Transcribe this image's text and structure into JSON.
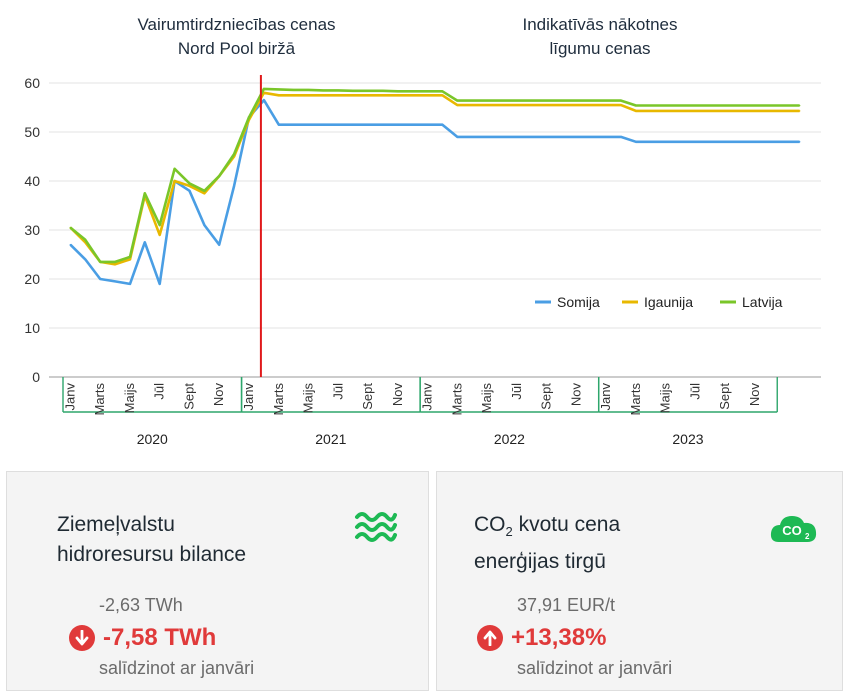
{
  "headers": {
    "left_line1": "Vairumtirdzniecības cenas",
    "left_line2": "Nord Pool biržā",
    "right_line1": "Indikatīvās nākotnes",
    "right_line2": "līgumu cenas"
  },
  "chart_data": {
    "type": "line",
    "title": "",
    "xlabel": "",
    "ylabel": "",
    "ylim": [
      0,
      60
    ],
    "yticks": [
      0,
      10,
      20,
      30,
      40,
      50,
      60
    ],
    "grid": true,
    "legend_position": "right",
    "month_labels": [
      "Janv",
      "Marts",
      "Maijs",
      "Jūl",
      "Sept",
      "Nov"
    ],
    "years": [
      "2020",
      "2021",
      "2022",
      "2023"
    ],
    "divider_after": "2021-Janv",
    "series": [
      {
        "name": "Somija",
        "color": "#4a9ee4",
        "values": [
          27,
          24,
          20,
          19.5,
          19,
          27.5,
          19,
          40,
          38,
          31,
          27,
          39,
          53,
          56.5,
          51.5,
          51.5,
          51.5,
          51.5,
          51.5,
          51.5,
          51.5,
          51.5,
          51.5,
          51.5,
          51.5,
          51.5,
          49,
          49,
          49,
          49,
          49,
          49,
          49,
          49,
          49,
          49,
          49,
          49,
          48,
          48,
          48,
          48,
          48,
          48,
          48,
          48,
          48,
          48,
          48,
          48
        ]
      },
      {
        "name": "Igaunija",
        "color": "#e8b800",
        "values": [
          30.5,
          27.5,
          23.5,
          23,
          24,
          37,
          29,
          40,
          39,
          37.5,
          41,
          45,
          52.5,
          58,
          57.5,
          57.5,
          57.5,
          57.5,
          57.5,
          57.5,
          57.5,
          57.5,
          57.5,
          57.5,
          57.5,
          57.5,
          55.5,
          55.5,
          55.5,
          55.5,
          55.5,
          55.5,
          55.5,
          55.5,
          55.5,
          55.5,
          55.5,
          55.5,
          54.3,
          54.3,
          54.3,
          54.3,
          54.3,
          54.3,
          54.3,
          54.3,
          54.3,
          54.3,
          54.3,
          54.3
        ]
      },
      {
        "name": "Latvija",
        "color": "#7ac629",
        "values": [
          30.5,
          28,
          23.5,
          23.5,
          24.5,
          37.5,
          31,
          42.5,
          39.5,
          38,
          41,
          45.5,
          53,
          58.8,
          58.7,
          58.6,
          58.6,
          58.5,
          58.5,
          58.4,
          58.4,
          58.4,
          58.3,
          58.3,
          58.3,
          58.3,
          56.4,
          56.4,
          56.4,
          56.4,
          56.4,
          56.4,
          56.4,
          56.4,
          56.4,
          56.4,
          56.4,
          56.4,
          55.4,
          55.4,
          55.4,
          55.4,
          55.4,
          55.4,
          55.4,
          55.4,
          55.4,
          55.4,
          55.4,
          55.4
        ]
      }
    ]
  },
  "cards": {
    "hydro": {
      "title_line1": "Ziemeļvalstu",
      "title_line2": "hidroresursu bilance",
      "previous": "-2,63 TWh",
      "change": "-7,58 TWh",
      "direction": "down",
      "compare": "salīdzinot ar janvāri",
      "icon": "waves-icon",
      "icon_color": "#1db954"
    },
    "co2": {
      "title_prefix": "CO",
      "title_sub": "2",
      "title_suffix": " kvotu cena",
      "title_line2": "enerģijas tirgū",
      "previous": "37,91 EUR/t",
      "change": "+13,38%",
      "direction": "up",
      "compare": "salīdzinot ar janvāri",
      "icon": "co2-cloud-icon",
      "icon_text": "CO",
      "icon_sub": "2",
      "icon_color": "#1db954"
    },
    "negative_color": "#e03a3a"
  }
}
